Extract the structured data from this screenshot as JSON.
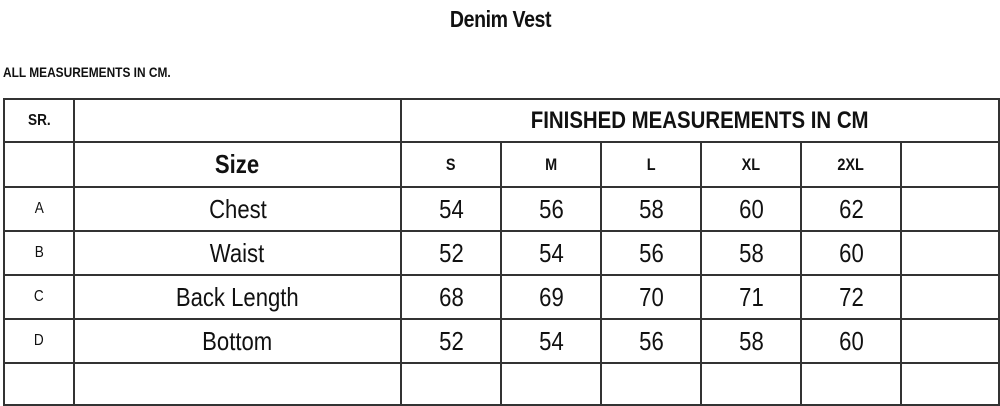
{
  "title": "Denim Vest",
  "note": "ALL MEASUREMENTS IN CM.",
  "table": {
    "sr_header": "SR.",
    "group_header": "FINISHED MEASUREMENTS IN CM",
    "size_header": "Size",
    "sizes": [
      "S",
      "M",
      "L",
      "XL",
      "2XL"
    ],
    "rows": [
      {
        "sr": "A",
        "name": "Chest",
        "values": [
          "54",
          "56",
          "58",
          "60",
          "62"
        ]
      },
      {
        "sr": "B",
        "name": "Waist",
        "values": [
          "52",
          "54",
          "56",
          "58",
          "60"
        ]
      },
      {
        "sr": "C",
        "name": "Back Length",
        "values": [
          "68",
          "69",
          "70",
          "71",
          "72"
        ]
      },
      {
        "sr": "D",
        "name": "Bottom",
        "values": [
          "52",
          "54",
          "56",
          "58",
          "60"
        ]
      }
    ]
  }
}
